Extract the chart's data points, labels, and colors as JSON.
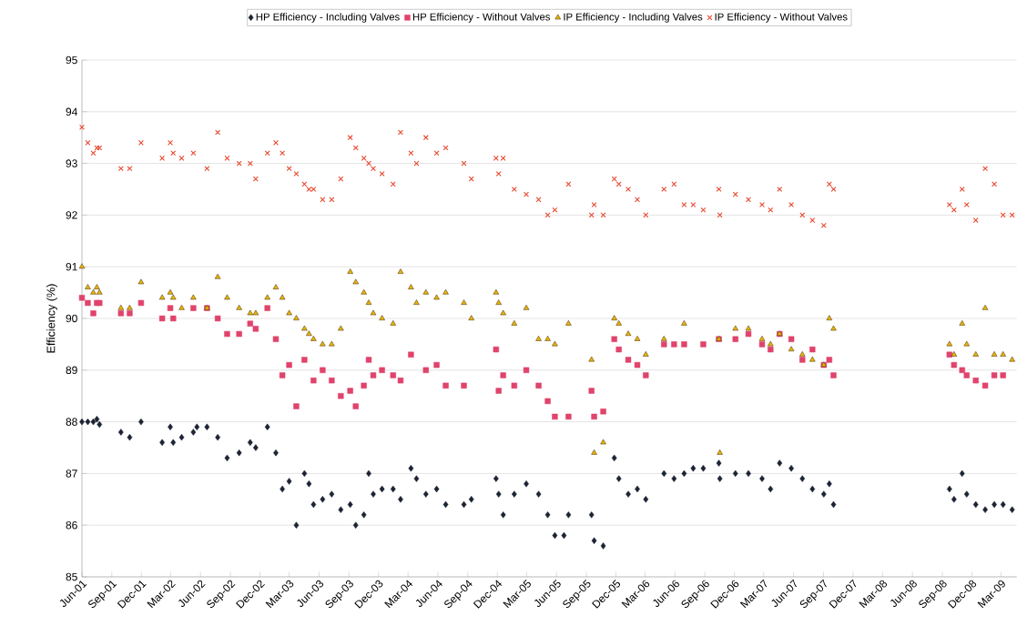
{
  "chart_data": {
    "type": "scatter",
    "ylabel": "Efficiency (%)",
    "legend": "top",
    "grid": "y",
    "xlim": [
      "2001-06-01",
      "2009-04-18"
    ],
    "ylim": [
      85,
      95
    ],
    "yticks": [
      85,
      86,
      87,
      88,
      89,
      90,
      91,
      92,
      93,
      94,
      95
    ],
    "xticks": [
      {
        "value": "2001-06-01",
        "label": "Jun-01"
      },
      {
        "value": "2001-09-01",
        "label": "Sep-01"
      },
      {
        "value": "2001-12-01",
        "label": "Dec-01"
      },
      {
        "value": "2002-03-01",
        "label": "Mar-02"
      },
      {
        "value": "2002-06-01",
        "label": "Jun-02"
      },
      {
        "value": "2002-09-01",
        "label": "Sep-02"
      },
      {
        "value": "2002-12-01",
        "label": "Dec-02"
      },
      {
        "value": "2003-03-01",
        "label": "Mar-03"
      },
      {
        "value": "2003-06-01",
        "label": "Jun-03"
      },
      {
        "value": "2003-09-01",
        "label": "Sep-03"
      },
      {
        "value": "2003-12-01",
        "label": "Dec-03"
      },
      {
        "value": "2004-03-01",
        "label": "Mar-04"
      },
      {
        "value": "2004-06-01",
        "label": "Jun-04"
      },
      {
        "value": "2004-09-01",
        "label": "Sep-04"
      },
      {
        "value": "2004-12-01",
        "label": "Dec-04"
      },
      {
        "value": "2005-03-01",
        "label": "Mar-05"
      },
      {
        "value": "2005-06-01",
        "label": "Jun-05"
      },
      {
        "value": "2005-09-01",
        "label": "Sep-05"
      },
      {
        "value": "2005-12-01",
        "label": "Dec-05"
      },
      {
        "value": "2006-03-01",
        "label": "Mar-06"
      },
      {
        "value": "2006-06-01",
        "label": "Jun-06"
      },
      {
        "value": "2006-09-01",
        "label": "Sep-06"
      },
      {
        "value": "2006-12-01",
        "label": "Dec-06"
      },
      {
        "value": "2007-03-01",
        "label": "Mar-07"
      },
      {
        "value": "2007-06-01",
        "label": "Jun-07"
      },
      {
        "value": "2007-09-01",
        "label": "Sep-07"
      },
      {
        "value": "2007-12-01",
        "label": "Dec-07"
      },
      {
        "value": "2008-03-01",
        "label": "Mar-08"
      },
      {
        "value": "2008-06-01",
        "label": "Jun-08"
      },
      {
        "value": "2008-09-01",
        "label": "Sep-08"
      },
      {
        "value": "2008-12-01",
        "label": "Dec-08"
      },
      {
        "value": "2009-03-01",
        "label": "Mar-09"
      }
    ],
    "series": [
      {
        "name": "HP Efficiency - Including Valves",
        "color": "#1c2333",
        "marker": "diamond",
        "x": [
          "2001-06-01",
          "2001-06-19",
          "2001-07-06",
          "2001-07-17",
          "2001-07-25",
          "2001-09-29",
          "2001-10-26",
          "2001-11-30",
          "2002-02-03",
          "2002-02-28",
          "2002-03-09",
          "2002-04-04",
          "2002-05-10",
          "2002-05-21",
          "2002-06-21",
          "2002-07-24",
          "2002-08-22",
          "2002-09-28",
          "2002-11-01",
          "2002-11-18",
          "2002-12-24",
          "2003-01-19",
          "2003-02-08",
          "2003-03-01",
          "2003-03-23",
          "2003-04-17",
          "2003-05-01",
          "2003-05-15",
          "2003-06-12",
          "2003-07-10",
          "2003-08-07",
          "2003-09-05",
          "2003-09-22",
          "2003-10-17",
          "2003-11-01",
          "2003-11-15",
          "2003-12-12",
          "2004-01-15",
          "2004-02-07",
          "2004-03-10",
          "2004-03-27",
          "2004-04-25",
          "2004-05-28",
          "2004-06-25",
          "2004-08-20",
          "2004-09-12",
          "2004-11-27",
          "2004-12-05",
          "2004-12-19",
          "2005-01-22",
          "2005-02-28",
          "2005-04-07",
          "2005-05-05",
          "2005-05-27",
          "2005-06-24",
          "2005-07-08",
          "2005-09-17",
          "2005-09-25",
          "2005-10-23",
          "2005-11-26",
          "2005-12-10",
          "2006-01-08",
          "2006-02-05",
          "2006-03-03",
          "2006-04-28",
          "2006-05-29",
          "2006-06-29",
          "2006-07-27",
          "2006-08-27",
          "2006-10-14",
          "2006-10-17",
          "2006-12-04",
          "2007-01-13",
          "2007-02-24",
          "2007-03-22",
          "2007-04-19",
          "2007-05-25",
          "2007-06-28",
          "2007-07-29",
          "2007-09-02",
          "2007-09-19",
          "2007-10-02",
          "2008-09-23",
          "2008-10-07",
          "2008-11-01",
          "2008-11-15",
          "2008-12-13",
          "2009-01-11",
          "2009-02-08",
          "2009-03-07",
          "2009-04-04"
        ],
        "values": [
          88.0,
          88.0,
          88.0,
          88.05,
          87.95,
          87.8,
          87.7,
          88.0,
          87.6,
          87.9,
          87.6,
          87.7,
          87.8,
          87.9,
          87.9,
          87.7,
          87.3,
          87.4,
          87.6,
          87.5,
          87.9,
          87.4,
          86.7,
          86.85,
          86.0,
          87.0,
          86.8,
          86.4,
          86.5,
          86.6,
          86.3,
          86.4,
          86.0,
          86.2,
          87.0,
          86.6,
          86.7,
          86.7,
          86.5,
          87.1,
          86.9,
          86.6,
          86.7,
          86.4,
          86.4,
          86.5,
          86.9,
          86.6,
          86.2,
          86.6,
          86.8,
          86.6,
          86.2,
          85.8,
          85.8,
          86.2,
          86.2,
          85.7,
          85.6,
          87.3,
          86.9,
          86.6,
          86.7,
          86.5,
          87.0,
          86.9,
          87.0,
          87.1,
          87.1,
          87.2,
          86.9,
          87.0,
          87.0,
          86.9,
          86.7,
          87.2,
          87.1,
          86.9,
          86.7,
          86.6,
          86.8,
          86.4,
          86.7,
          86.5,
          87.0,
          86.6,
          86.4,
          86.3,
          86.4,
          86.4,
          86.3
        ]
      },
      {
        "name": "HP Efficiency - Without Valves",
        "color": "#e0436b",
        "marker": "square",
        "x": [
          "2001-06-01",
          "2001-06-19",
          "2001-07-06",
          "2001-07-17",
          "2001-07-25",
          "2001-09-29",
          "2001-10-26",
          "2001-11-30",
          "2002-02-03",
          "2002-02-28",
          "2002-03-09",
          "2002-05-10",
          "2002-06-21",
          "2002-07-24",
          "2002-08-22",
          "2002-09-28",
          "2002-11-01",
          "2002-11-18",
          "2002-12-24",
          "2003-01-19",
          "2003-02-08",
          "2003-03-01",
          "2003-03-23",
          "2003-04-17",
          "2003-05-15",
          "2003-06-12",
          "2003-07-10",
          "2003-08-07",
          "2003-09-05",
          "2003-09-22",
          "2003-10-17",
          "2003-11-01",
          "2003-11-15",
          "2003-12-12",
          "2004-01-15",
          "2004-02-07",
          "2004-03-10",
          "2004-04-25",
          "2004-05-28",
          "2004-06-25",
          "2004-08-20",
          "2004-11-27",
          "2004-12-05",
          "2004-12-19",
          "2005-01-22",
          "2005-02-28",
          "2005-04-07",
          "2005-05-05",
          "2005-05-27",
          "2005-07-08",
          "2005-09-17",
          "2005-09-25",
          "2005-10-23",
          "2005-11-26",
          "2005-12-10",
          "2006-01-08",
          "2006-02-05",
          "2006-03-03",
          "2006-04-28",
          "2006-05-29",
          "2006-06-29",
          "2006-08-27",
          "2006-10-14",
          "2006-12-04",
          "2007-01-13",
          "2007-02-24",
          "2007-03-22",
          "2007-04-19",
          "2007-05-25",
          "2007-06-28",
          "2007-07-29",
          "2007-09-02",
          "2007-09-19",
          "2007-10-02",
          "2008-09-23",
          "2008-10-07",
          "2008-11-01",
          "2008-11-15",
          "2008-12-13",
          "2009-01-11",
          "2009-02-08",
          "2009-03-07"
        ],
        "values": [
          90.4,
          90.3,
          90.1,
          90.3,
          90.3,
          90.1,
          90.1,
          90.3,
          90.0,
          90.2,
          90.0,
          90.2,
          90.2,
          90.0,
          89.7,
          89.7,
          89.9,
          89.8,
          90.2,
          89.6,
          88.9,
          89.1,
          88.3,
          89.2,
          88.8,
          89.0,
          88.8,
          88.5,
          88.6,
          88.3,
          88.7,
          89.2,
          88.9,
          89.0,
          88.9,
          88.8,
          89.3,
          89.0,
          89.1,
          88.7,
          88.7,
          89.4,
          88.6,
          88.9,
          88.7,
          89.0,
          88.7,
          88.4,
          88.1,
          88.1,
          88.6,
          88.1,
          88.2,
          89.6,
          89.4,
          89.2,
          89.1,
          88.9,
          89.5,
          89.5,
          89.5,
          89.5,
          89.6,
          89.6,
          89.7,
          89.5,
          89.4,
          89.7,
          89.6,
          89.2,
          89.4,
          89.1,
          89.2,
          88.9,
          89.3,
          89.1,
          89.0,
          88.9,
          88.8,
          88.7,
          88.9,
          88.9
        ]
      },
      {
        "name": "IP Efficiency - Including Valves",
        "color": "#e8b400",
        "marker": "triangle",
        "x": [
          "2001-06-01",
          "2001-06-19",
          "2001-07-06",
          "2001-07-17",
          "2001-07-25",
          "2001-09-29",
          "2001-10-26",
          "2001-11-30",
          "2002-02-03",
          "2002-02-28",
          "2002-03-09",
          "2002-04-04",
          "2002-05-10",
          "2002-06-21",
          "2002-07-24",
          "2002-08-22",
          "2002-09-28",
          "2002-11-01",
          "2002-11-18",
          "2002-12-24",
          "2003-01-19",
          "2003-02-08",
          "2003-03-01",
          "2003-03-23",
          "2003-04-17",
          "2003-05-01",
          "2003-05-15",
          "2003-06-12",
          "2003-07-10",
          "2003-08-07",
          "2003-09-05",
          "2003-09-22",
          "2003-10-17",
          "2003-11-01",
          "2003-11-15",
          "2003-12-12",
          "2004-01-15",
          "2004-02-07",
          "2004-03-10",
          "2004-03-27",
          "2004-04-25",
          "2004-05-28",
          "2004-06-25",
          "2004-08-20",
          "2004-09-12",
          "2004-11-27",
          "2004-12-05",
          "2004-12-19",
          "2005-01-22",
          "2005-02-28",
          "2005-04-07",
          "2005-05-05",
          "2005-05-27",
          "2005-07-08",
          "2005-09-17",
          "2005-09-25",
          "2005-10-23",
          "2005-11-26",
          "2005-12-10",
          "2006-01-08",
          "2006-02-05",
          "2006-03-03",
          "2006-04-28",
          "2006-06-29",
          "2006-10-14",
          "2006-10-17",
          "2006-12-04",
          "2007-01-13",
          "2007-02-24",
          "2007-03-22",
          "2007-04-19",
          "2007-05-25",
          "2007-06-28",
          "2007-07-29",
          "2007-09-02",
          "2007-09-19",
          "2007-10-02",
          "2008-09-23",
          "2008-10-07",
          "2008-11-01",
          "2008-11-15",
          "2008-12-13",
          "2009-01-11",
          "2009-02-08",
          "2009-03-07",
          "2009-04-04"
        ],
        "values": [
          91.0,
          90.6,
          90.5,
          90.6,
          90.5,
          90.2,
          90.2,
          90.7,
          90.4,
          90.5,
          90.4,
          90.2,
          90.4,
          90.2,
          90.8,
          90.4,
          90.2,
          90.1,
          90.1,
          90.4,
          90.6,
          90.4,
          90.1,
          90.0,
          89.8,
          89.7,
          89.6,
          89.5,
          89.5,
          89.8,
          90.9,
          90.7,
          90.5,
          90.3,
          90.1,
          90.0,
          89.9,
          90.9,
          90.6,
          90.3,
          90.5,
          90.4,
          90.5,
          90.3,
          90.0,
          90.5,
          90.3,
          90.1,
          89.9,
          90.2,
          89.6,
          89.6,
          89.5,
          89.9,
          89.2,
          87.4,
          87.6,
          90.0,
          89.9,
          89.7,
          89.6,
          89.3,
          89.6,
          89.9,
          89.6,
          87.4,
          89.8,
          89.8,
          89.6,
          89.5,
          89.7,
          89.4,
          89.3,
          89.2,
          89.1,
          90.0,
          89.8,
          89.5,
          89.3,
          89.9,
          89.5,
          89.3,
          90.2,
          89.3,
          89.3,
          89.2
        ]
      },
      {
        "name": "IP Efficiency - Without Valves",
        "color": "#e8452c",
        "marker": "cross",
        "x": [
          "2001-06-01",
          "2001-06-19",
          "2001-07-06",
          "2001-07-17",
          "2001-07-25",
          "2001-09-29",
          "2001-10-26",
          "2001-11-30",
          "2002-02-03",
          "2002-02-28",
          "2002-03-09",
          "2002-04-04",
          "2002-05-10",
          "2002-06-21",
          "2002-07-24",
          "2002-08-22",
          "2002-09-28",
          "2002-11-01",
          "2002-11-18",
          "2002-12-24",
          "2003-01-19",
          "2003-02-08",
          "2003-03-01",
          "2003-03-23",
          "2003-04-17",
          "2003-05-01",
          "2003-05-15",
          "2003-06-12",
          "2003-07-10",
          "2003-08-07",
          "2003-09-05",
          "2003-09-22",
          "2003-10-17",
          "2003-11-01",
          "2003-11-15",
          "2003-12-12",
          "2004-01-15",
          "2004-02-07",
          "2004-03-10",
          "2004-03-27",
          "2004-04-25",
          "2004-05-28",
          "2004-06-25",
          "2004-08-20",
          "2004-09-12",
          "2004-11-27",
          "2004-12-05",
          "2004-12-19",
          "2005-01-22",
          "2005-02-28",
          "2005-04-07",
          "2005-05-05",
          "2005-05-27",
          "2005-07-08",
          "2005-09-17",
          "2005-09-25",
          "2005-10-23",
          "2005-11-26",
          "2005-12-10",
          "2006-01-08",
          "2006-02-05",
          "2006-03-03",
          "2006-04-28",
          "2006-05-29",
          "2006-06-29",
          "2006-07-27",
          "2006-08-27",
          "2006-10-14",
          "2006-10-17",
          "2006-12-04",
          "2007-01-13",
          "2007-02-24",
          "2007-03-22",
          "2007-04-19",
          "2007-05-25",
          "2007-06-28",
          "2007-07-29",
          "2007-09-02",
          "2007-09-19",
          "2007-10-02",
          "2008-09-23",
          "2008-10-07",
          "2008-11-01",
          "2008-11-15",
          "2008-12-13",
          "2009-01-11",
          "2009-02-08",
          "2009-03-07",
          "2009-04-04"
        ],
        "values": [
          93.7,
          93.4,
          93.2,
          93.3,
          93.3,
          92.9,
          92.9,
          93.4,
          93.1,
          93.4,
          93.2,
          93.1,
          93.2,
          92.9,
          93.6,
          93.1,
          93.0,
          93.0,
          92.7,
          93.2,
          93.4,
          93.2,
          92.9,
          92.8,
          92.6,
          92.5,
          92.5,
          92.3,
          92.3,
          92.7,
          93.5,
          93.3,
          93.1,
          93.0,
          92.9,
          92.8,
          92.6,
          93.6,
          93.2,
          93.0,
          93.5,
          93.2,
          93.3,
          93.0,
          92.7,
          93.1,
          92.8,
          93.1,
          92.5,
          92.4,
          92.3,
          92.0,
          92.1,
          92.6,
          92.0,
          92.2,
          92.0,
          92.7,
          92.6,
          92.5,
          92.3,
          92.0,
          92.5,
          92.6,
          92.2,
          92.2,
          92.1,
          92.5,
          92.0,
          92.4,
          92.3,
          92.2,
          92.1,
          92.5,
          92.2,
          92.0,
          91.9,
          91.8,
          92.6,
          92.5,
          92.2,
          92.1,
          92.5,
          92.2,
          91.9,
          92.9,
          92.6,
          92.0,
          92.0
        ]
      }
    ]
  }
}
